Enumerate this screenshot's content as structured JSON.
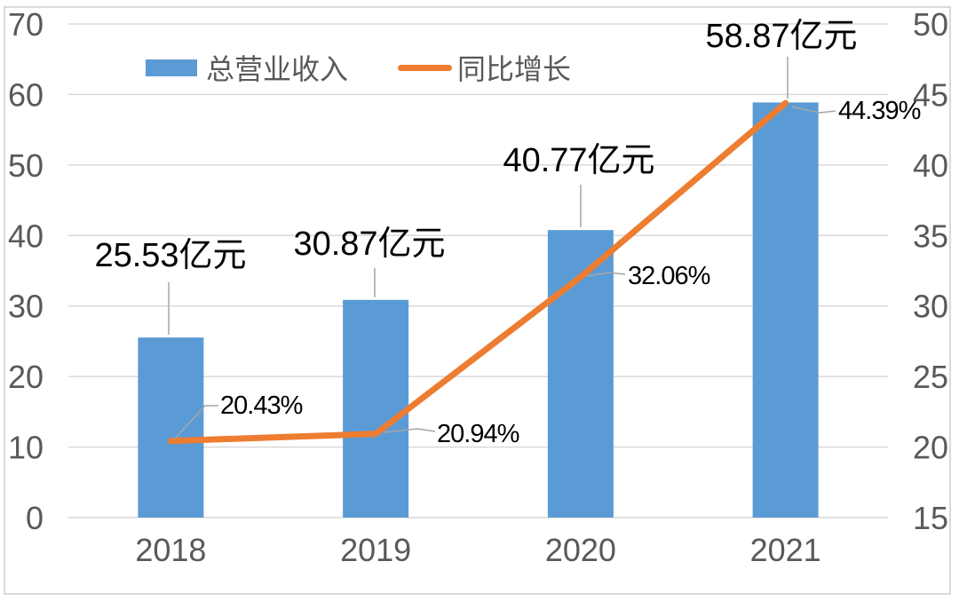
{
  "chart_data": {
    "type": "combo",
    "subtype": "bar+line",
    "title": "",
    "categories": [
      "2018",
      "2019",
      "2020",
      "2021"
    ],
    "series": [
      {
        "name": "总营业收入",
        "type": "bar",
        "axis": "left",
        "unit": "亿元",
        "values": [
          25.53,
          30.87,
          40.77,
          58.87
        ],
        "labels": [
          "25.53亿元",
          "30.87亿元",
          "40.77亿元",
          "58.87亿元"
        ],
        "color": "#5B9BD5"
      },
      {
        "name": "同比增长",
        "type": "line",
        "axis": "right",
        "unit": "%",
        "values": [
          20.43,
          20.94,
          32.06,
          44.39
        ],
        "labels": [
          "20.43%",
          "20.94%",
          "32.06%",
          "44.39%"
        ],
        "color": "#ED7D31"
      }
    ],
    "left_axis": {
      "min": 0,
      "max": 70,
      "step": 10,
      "ticks": [
        "0",
        "10",
        "20",
        "30",
        "40",
        "50",
        "60",
        "70"
      ]
    },
    "right_axis": {
      "min": 15,
      "max": 50,
      "step": 5,
      "ticks": [
        "15",
        "20",
        "25",
        "30",
        "35",
        "40",
        "45",
        "50"
      ]
    },
    "legend": {
      "position": "top",
      "entries": [
        "总营业收入",
        "同比增长"
      ]
    },
    "grid": true
  },
  "colors": {
    "bar": "#5B9BD5",
    "line": "#ED7D31",
    "grid": "#D9D9D9",
    "border": "#D9D9D9",
    "tick_text": "#595959",
    "label_text": "#000000",
    "leader": "#A6A6A6",
    "background": "#FFFFFF"
  }
}
